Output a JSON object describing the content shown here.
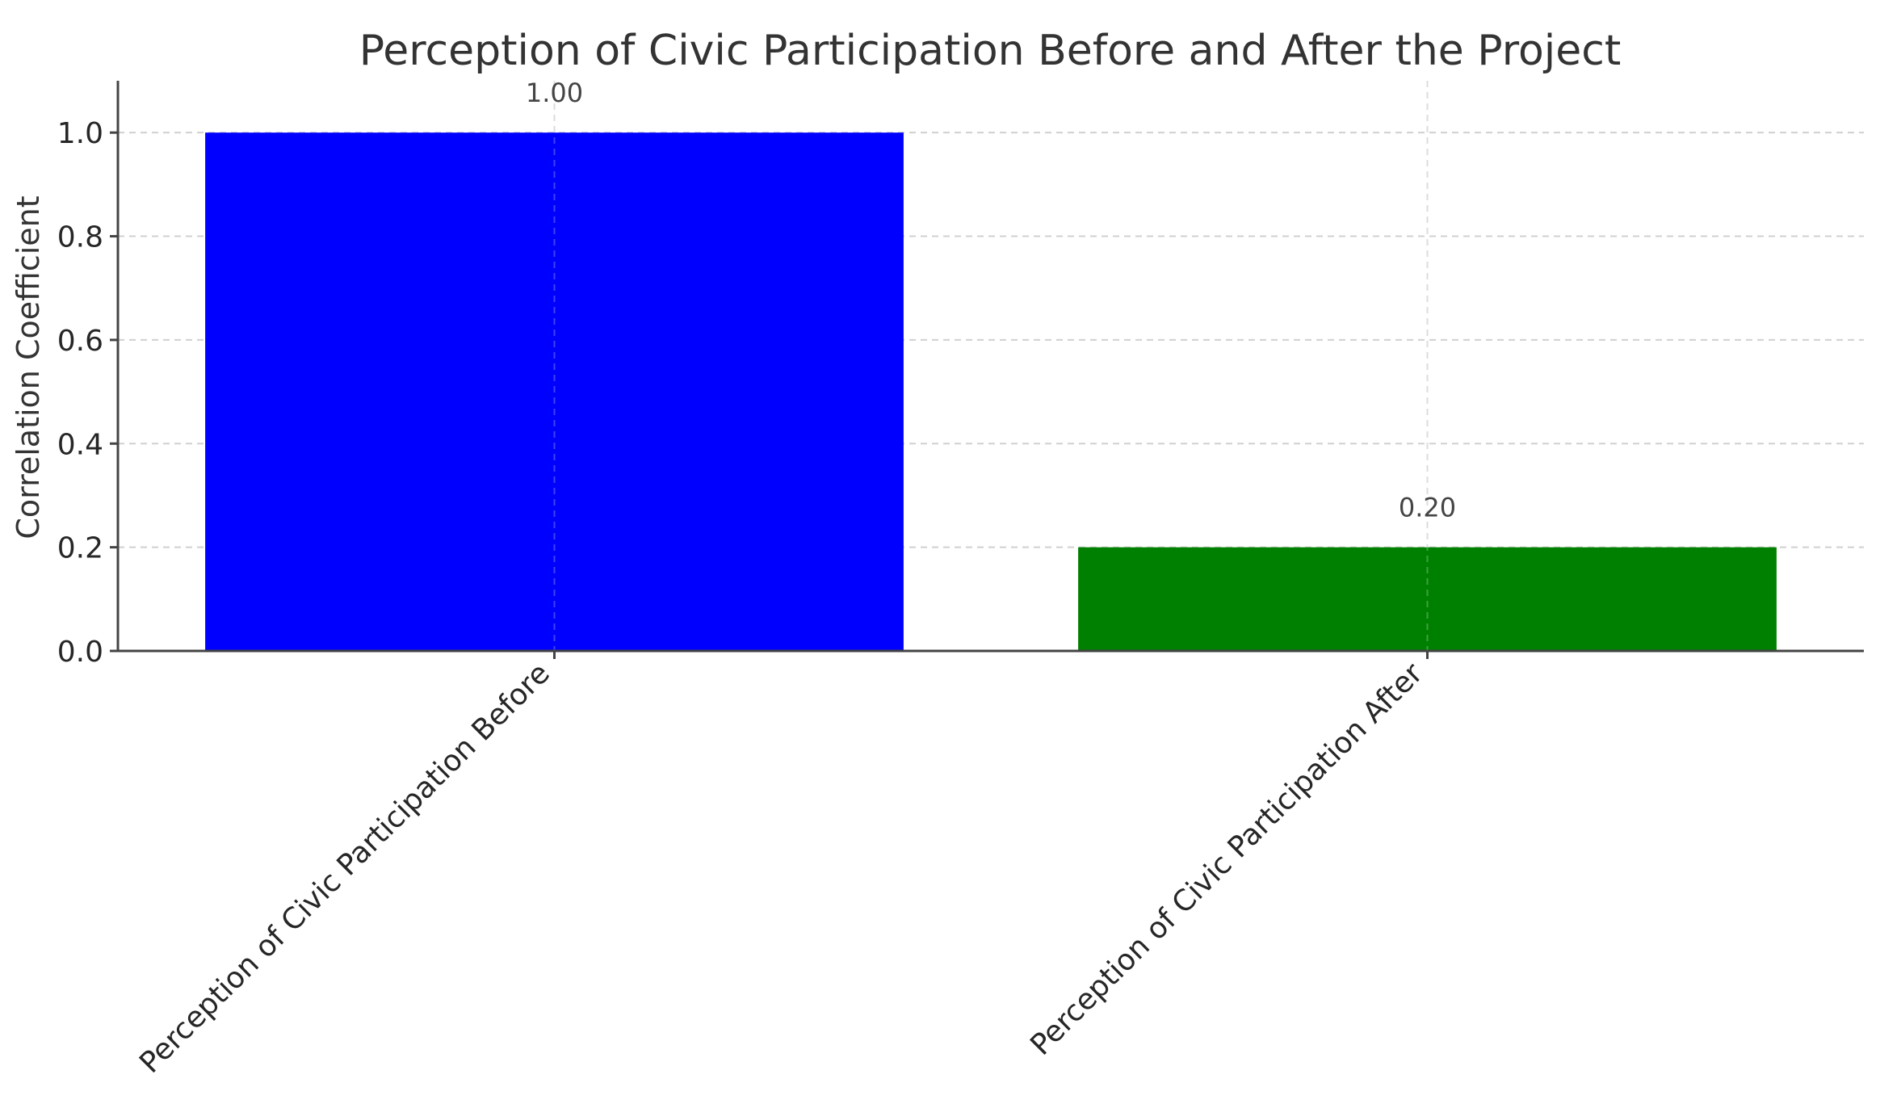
{
  "chart_data": {
    "type": "bar",
    "title": "Perception of Civic Participation Before and After the Project",
    "xlabel": "",
    "ylabel": "Correlation Coefficient",
    "categories": [
      "Perception of Civic Participation Before",
      "Perception of Civic Participation After"
    ],
    "values": [
      1.0,
      0.2
    ],
    "value_labels": [
      "1.00",
      "0.20"
    ],
    "colors": [
      "#0000ff",
      "#008000"
    ],
    "ylim": [
      0,
      1.1
    ],
    "yticks": [
      0.0,
      0.2,
      0.4,
      0.6,
      0.8,
      1.0
    ],
    "ytick_labels": [
      "0.0",
      "0.2",
      "0.4",
      "0.6",
      "0.8",
      "1.0"
    ],
    "grid": true,
    "legend": "none"
  }
}
